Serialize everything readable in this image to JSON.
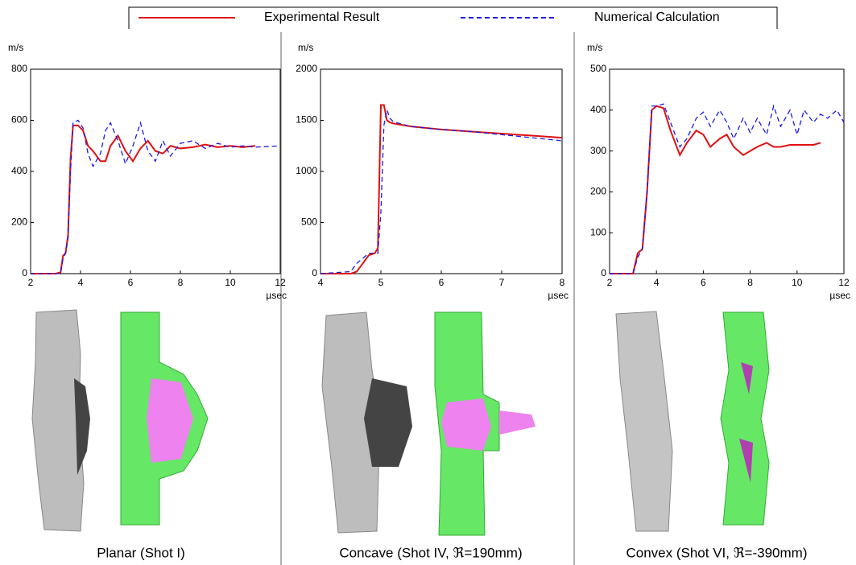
{
  "chart_data": [
    {
      "type": "line",
      "y_label": "m/s",
      "x_label": "µsec",
      "caption": "Planar (Shot I)",
      "xlim": [
        2,
        12
      ],
      "xticks": [
        2,
        4,
        6,
        8,
        10,
        12
      ],
      "ylim": [
        0,
        800
      ],
      "yticks": [
        0,
        200,
        400,
        600,
        800
      ],
      "x": [
        2,
        3,
        3.2,
        3.3,
        3.4,
        3.5,
        3.6,
        3.7,
        3.9,
        4.1,
        4.3,
        4.5,
        4.8,
        5.0,
        5.2,
        5.5,
        5.8,
        6.1,
        6.4,
        6.7,
        7.0,
        7.3,
        7.6,
        8.0,
        8.5,
        9.0,
        9.5,
        10,
        10.5,
        11,
        12
      ],
      "series": [
        {
          "name": "Experimental Result",
          "color": "#e01010",
          "style": "solid",
          "values": [
            0,
            0,
            5,
            70,
            80,
            150,
            450,
            580,
            580,
            560,
            500,
            480,
            440,
            440,
            500,
            540,
            480,
            440,
            490,
            520,
            480,
            470,
            500,
            490,
            495,
            505,
            495,
            500,
            495,
            500,
            null
          ]
        },
        {
          "name": "Numerical Calculation",
          "color": "#1a1ae6",
          "style": "dashed",
          "values": [
            0,
            0,
            0,
            60,
            80,
            140,
            400,
            590,
            600,
            570,
            470,
            420,
            470,
            560,
            590,
            520,
            430,
            500,
            590,
            480,
            440,
            520,
            460,
            510,
            520,
            490,
            510,
            495,
            500,
            495,
            500
          ]
        }
      ]
    },
    {
      "type": "line",
      "y_label": "m/s",
      "x_label": "µsec",
      "caption": "Concave (Shot IV, ℜ=190mm)",
      "xlim": [
        4,
        8
      ],
      "xticks": [
        4,
        5,
        6,
        7,
        8
      ],
      "ylim": [
        0,
        2000
      ],
      "yticks": [
        0,
        500,
        1000,
        1500,
        2000
      ],
      "x": [
        4,
        4.5,
        4.6,
        4.7,
        4.8,
        4.9,
        4.95,
        5.0,
        5.05,
        5.1,
        5.15,
        5.2,
        5.3,
        5.5,
        6,
        6.5,
        7,
        7.5,
        8
      ],
      "series": [
        {
          "color": "#e01010",
          "style": "solid",
          "values": [
            0,
            0,
            20,
            100,
            180,
            200,
            250,
            1650,
            1650,
            1500,
            1480,
            1470,
            1460,
            1440,
            1410,
            1390,
            1370,
            1350,
            1330
          ]
        },
        {
          "color": "#1a1ae6",
          "style": "dashed",
          "values": [
            0,
            20,
            100,
            150,
            200,
            200,
            200,
            600,
            1450,
            1600,
            1520,
            1490,
            1470,
            1440,
            1410,
            1390,
            1360,
            1330,
            1300
          ]
        }
      ]
    },
    {
      "type": "line",
      "y_label": "m/s",
      "x_label": "µsec",
      "caption": "Convex (Shot VI, ℜ=-390mm)",
      "xlim": [
        2,
        12
      ],
      "xticks": [
        2,
        4,
        6,
        8,
        10,
        12
      ],
      "ylim": [
        0,
        500
      ],
      "yticks": [
        0,
        100,
        200,
        300,
        400,
        500
      ],
      "x": [
        2,
        3,
        3.2,
        3.4,
        3.6,
        3.8,
        4.0,
        4.3,
        4.6,
        5.0,
        5.3,
        5.7,
        6.0,
        6.3,
        6.7,
        7.0,
        7.3,
        7.7,
        8.0,
        8.3,
        8.7,
        9.0,
        9.3,
        9.7,
        10,
        10.3,
        10.7,
        11,
        11.3,
        11.7,
        12
      ],
      "series": [
        {
          "color": "#e01010",
          "style": "solid",
          "values": [
            0,
            0,
            50,
            60,
            200,
            400,
            410,
            405,
            350,
            290,
            320,
            350,
            340,
            310,
            330,
            340,
            310,
            290,
            300,
            310,
            320,
            310,
            310,
            315,
            315,
            315,
            315,
            320,
            null,
            null,
            null
          ]
        },
        {
          "color": "#1a1ae6",
          "style": "dashed",
          "values": [
            0,
            0,
            40,
            60,
            200,
            410,
            410,
            415,
            370,
            310,
            330,
            380,
            395,
            360,
            400,
            370,
            330,
            380,
            345,
            380,
            340,
            410,
            360,
            400,
            340,
            400,
            370,
            390,
            380,
            400,
            370
          ]
        }
      ]
    }
  ]
}
